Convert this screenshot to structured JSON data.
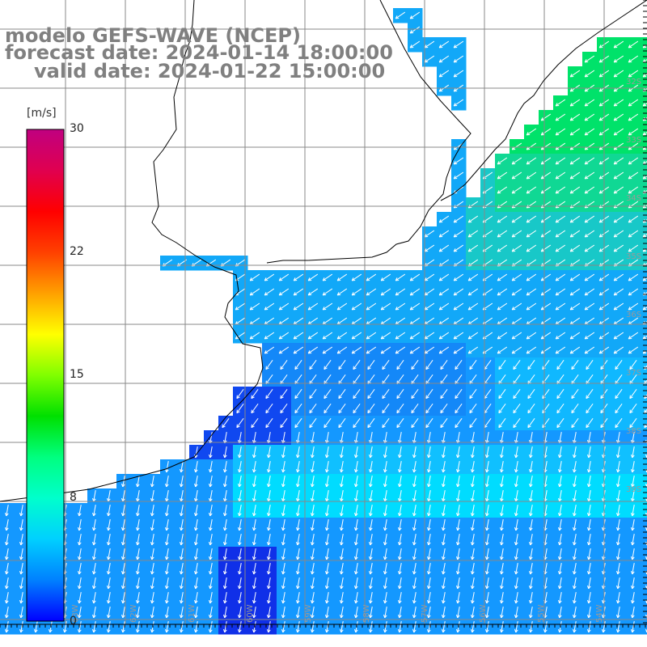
{
  "title": {
    "model": "modelo GEFS-WAVE (NCEP)",
    "forecast": "forecast date: 2024-01-14 18:00:00",
    "valid": "valid date: 2024-01-22 15:00:00"
  },
  "colorbar": {
    "unit": "[m/s]",
    "ticks": [
      "30",
      "22",
      "15",
      "8",
      "0"
    ],
    "range": [
      0,
      30
    ],
    "colors": [
      "#0000ff",
      "#0080ff",
      "#00d0ff",
      "#00ffcc",
      "#00ff80",
      "#00e000",
      "#80ff00",
      "#ffff00",
      "#ffa000",
      "#ff4000",
      "#ff0000",
      "#e00050",
      "#c00080"
    ]
  },
  "latitude_labels": [
    "32S",
    "33S",
    "34S",
    "35S",
    "36S",
    "37S",
    "38S",
    "39S"
  ],
  "longitude_labels": [
    "63W",
    "62W",
    "61W",
    "60W",
    "59W",
    "58W",
    "57W",
    "56W",
    "55W",
    "54W",
    "53W"
  ],
  "colors": {
    "land": "#ffffff",
    "grid": "#808080",
    "coast": "#000000",
    "arrows": "#ffffff"
  }
}
